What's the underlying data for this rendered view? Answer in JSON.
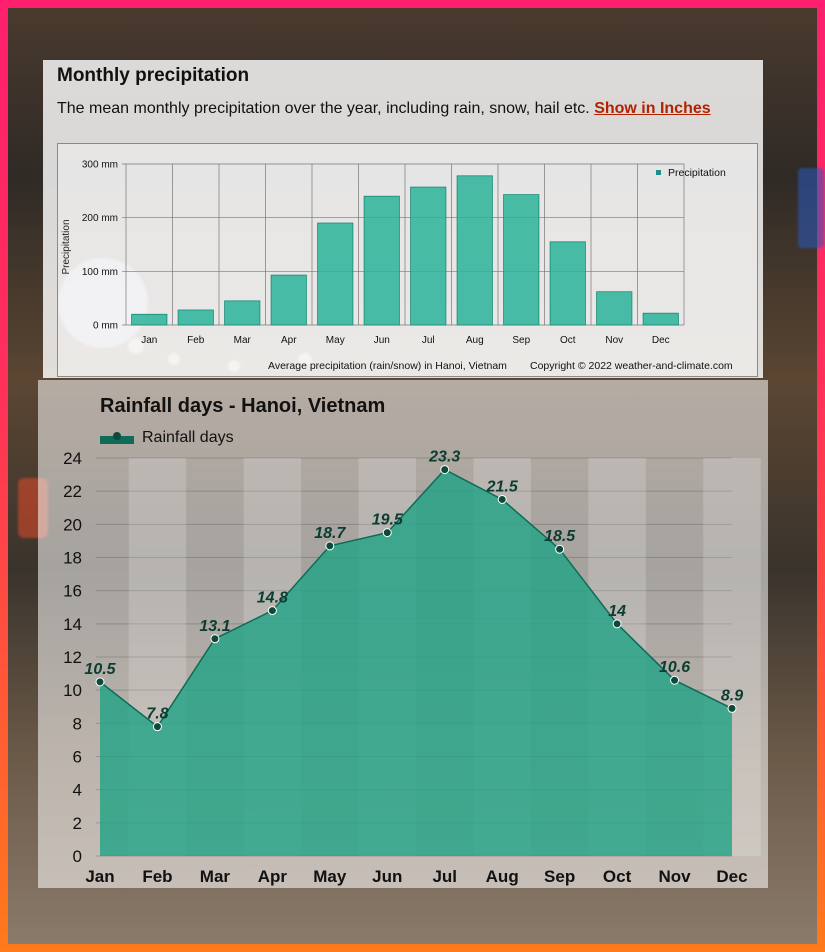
{
  "page": {
    "title": "Monthly precipitation",
    "description": "The mean monthly precipitation over the year, including rain, snow, hail etc.",
    "link_label": "Show in Inches"
  },
  "colors": {
    "bar": "#2bb39a",
    "area": "#1fa384",
    "link": "#b22200",
    "border_top": "#ff1f6e",
    "border_bottom": "#ff7a1a"
  },
  "chart_data": [
    {
      "type": "bar",
      "title": "",
      "ylabel": "Precipitation",
      "legend": "Precipitation",
      "legend_position": "top-right",
      "ylim": [
        0,
        300
      ],
      "yticks": [
        "0 mm",
        "100 mm",
        "200 mm",
        "300 mm"
      ],
      "ytick_values": [
        0,
        100,
        200,
        300
      ],
      "categories": [
        "Jan",
        "Feb",
        "Mar",
        "Apr",
        "May",
        "Jun",
        "Jul",
        "Aug",
        "Sep",
        "Oct",
        "Nov",
        "Dec"
      ],
      "values": [
        20,
        28,
        45,
        93,
        190,
        240,
        257,
        278,
        243,
        155,
        62,
        22
      ],
      "caption": "Average precipitation (rain/snow) in Hanoi, Vietnam",
      "copyright": "Copyright © 2022  weather-and-climate.com",
      "grid": true
    },
    {
      "type": "area",
      "title": "Rainfall days - Hanoi, Vietnam",
      "legend": "Rainfall days",
      "legend_position": "top-left",
      "ylim": [
        0,
        24
      ],
      "yticks": [
        "0",
        "2",
        "4",
        "6",
        "8",
        "10",
        "12",
        "14",
        "16",
        "18",
        "20",
        "22",
        "24"
      ],
      "ytick_values": [
        0,
        2,
        4,
        6,
        8,
        10,
        12,
        14,
        16,
        18,
        20,
        22,
        24
      ],
      "categories": [
        "Jan",
        "Feb",
        "Mar",
        "Apr",
        "May",
        "Jun",
        "Jul",
        "Aug",
        "Sep",
        "Oct",
        "Nov",
        "Dec"
      ],
      "values": [
        10.5,
        7.8,
        13.1,
        14.8,
        18.7,
        19.5,
        23.3,
        21.5,
        18.5,
        14,
        10.6,
        8.9
      ],
      "labels": [
        "10.5",
        "7.8",
        "13.1",
        "14.8",
        "18.7",
        "19.5",
        "23.3",
        "21.5",
        "18.5",
        "14",
        "10.6",
        "8.9"
      ],
      "grid": true
    }
  ]
}
